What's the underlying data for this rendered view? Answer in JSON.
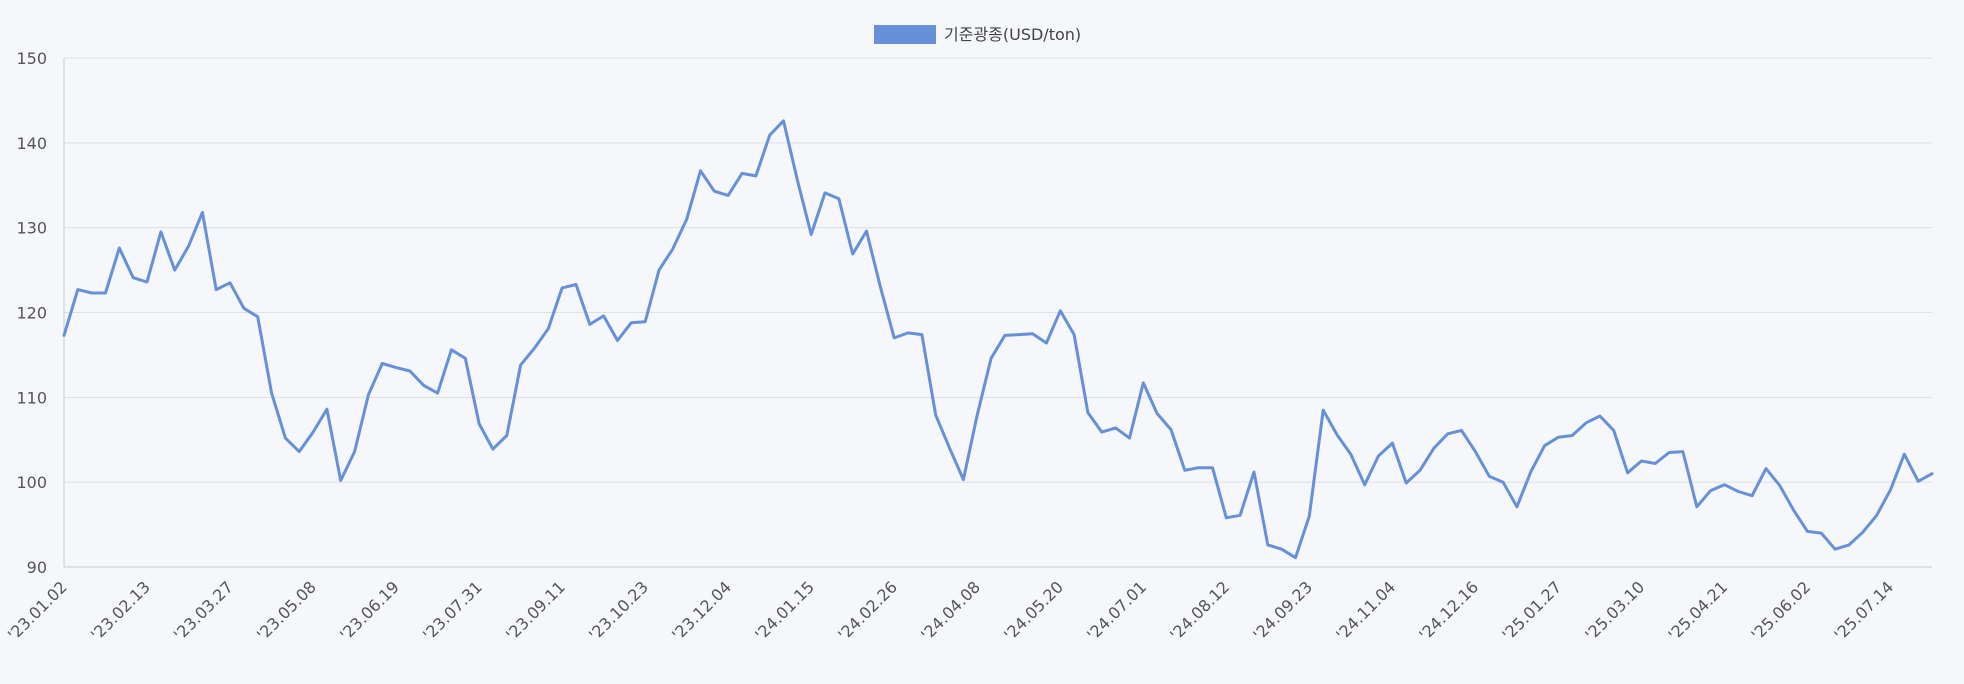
{
  "chart_data": {
    "type": "line",
    "series": [
      {
        "name": "기준광종(USD/ton)",
        "color": "#6690d8",
        "values": [
          117.3,
          122.7,
          122.3,
          122.3,
          127.6,
          124.1,
          123.6,
          129.5,
          125.0,
          127.8,
          131.8,
          122.7,
          123.5,
          120.5,
          119.5,
          110.5,
          105.2,
          103.6,
          105.9,
          108.6,
          100.2,
          103.6,
          110.3,
          114.0,
          113.5,
          113.1,
          111.4,
          110.5,
          115.6,
          114.6,
          106.9,
          103.9,
          105.5,
          113.8,
          115.8,
          118.1,
          122.9,
          123.3,
          118.6,
          119.6,
          116.7,
          118.8,
          118.9,
          125.0,
          127.5,
          131.0,
          136.7,
          134.3,
          133.8,
          136.4,
          136.1,
          140.9,
          142.6,
          135.6,
          129.2,
          134.1,
          133.4,
          126.9,
          129.6,
          123.0,
          117.0,
          117.6,
          117.4,
          107.9,
          104.0,
          100.3,
          107.9,
          114.6,
          117.3,
          117.4,
          117.5,
          116.4,
          120.2,
          117.4,
          108.2,
          105.9,
          106.4,
          105.2,
          111.7,
          108.1,
          106.2,
          101.4,
          101.7,
          101.7,
          95.8,
          96.1,
          101.2,
          92.6,
          92.1,
          91.1,
          96.0,
          108.5,
          105.6,
          103.3,
          99.7,
          103.1,
          104.6,
          99.9,
          101.4,
          104.0,
          105.7,
          106.1,
          103.6,
          100.7,
          100.0,
          97.1,
          101.2,
          104.3,
          105.3,
          105.5,
          107.0,
          107.8,
          106.1,
          101.1,
          102.5,
          102.2,
          103.5,
          103.6,
          97.1,
          99.0,
          99.7,
          98.9,
          98.4,
          101.6,
          99.6,
          96.7,
          94.2,
          94.0,
          92.1,
          92.6,
          94.1,
          96.1,
          99.1,
          103.3,
          100.1,
          101.0
        ]
      }
    ],
    "x_tick_labels": [
      "'23.01.02",
      "'23.02.13",
      "'23.03.27",
      "'23.05.08",
      "'23.06.19",
      "'23.07.31",
      "'23.09.11",
      "'23.10.23",
      "'23.12.04",
      "'24.01.15",
      "'24.02.26",
      "'24.04.08",
      "'24.05.20",
      "'24.07.01",
      "'24.08.12",
      "'24.09.23",
      "'24.11.04",
      "'24.12.16",
      "'25.01.27",
      "'25.03.10",
      "'25.04.21",
      "'25.06.02",
      "'25.07.14"
    ],
    "x_tick_every": 6,
    "ylim": [
      90,
      150
    ],
    "y_ticks": [
      90,
      100,
      110,
      120,
      130,
      140,
      150
    ],
    "grid": true,
    "legend_position": "top-center",
    "title": "",
    "xlabel": "",
    "ylabel": ""
  }
}
